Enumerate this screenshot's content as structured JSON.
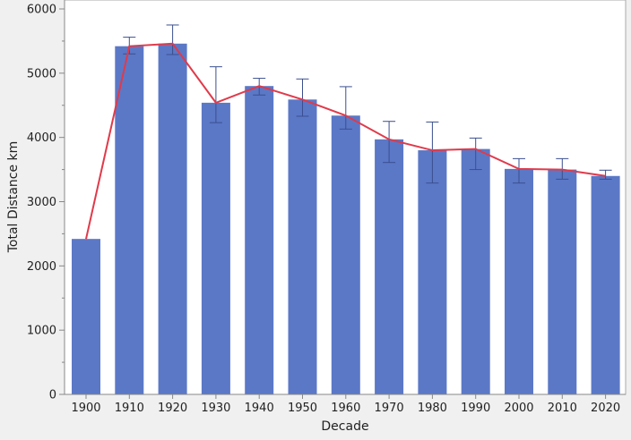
{
  "chart_data": {
    "type": "bar",
    "xlabel": "Decade",
    "ylabel": "Total Distance km",
    "ylim": [
      0,
      6000
    ],
    "yticks": [
      0,
      1000,
      2000,
      3000,
      4000,
      5000,
      6000
    ],
    "grid": false,
    "legend": "none",
    "categories": [
      "1900",
      "1910",
      "1920",
      "1930",
      "1940",
      "1950",
      "1960",
      "1970",
      "1980",
      "1990",
      "2000",
      "2010",
      "2020"
    ],
    "values": [
      2420,
      5420,
      5460,
      4540,
      4800,
      4590,
      4340,
      3970,
      3800,
      3820,
      3510,
      3500,
      3400
    ],
    "error_upper": [
      2420,
      5560,
      5750,
      5100,
      4920,
      4910,
      4790,
      4250,
      4240,
      3990,
      3670,
      3670,
      3490
    ],
    "error_lower": [
      2420,
      5300,
      5290,
      4230,
      4660,
      4330,
      4130,
      3610,
      3290,
      3500,
      3290,
      3350,
      3350
    ],
    "line_values": [
      2420,
      5420,
      5460,
      4540,
      4800,
      4590,
      4340,
      3970,
      3800,
      3820,
      3510,
      3500,
      3400
    ],
    "colors": {
      "bar": "#5b78c7",
      "line": "#e03a4a",
      "error": "#3a4f8f",
      "axis": "#888888",
      "plot_bg": "#ffffff",
      "page_bg": "#f0f0f0"
    }
  }
}
